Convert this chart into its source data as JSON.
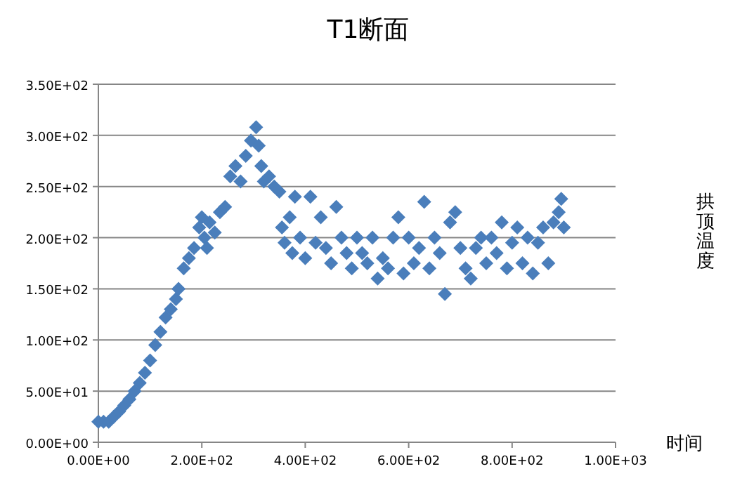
{
  "chart_data": {
    "type": "scatter",
    "title": "T1断面",
    "xlabel": "时间",
    "ylabel": "拱顶温度",
    "marker": "diamond",
    "grid": "y",
    "xlim": [
      0,
      1000
    ],
    "ylim": [
      0,
      350
    ],
    "xticks": [
      {
        "value": 0,
        "label": "0.00E+00"
      },
      {
        "value": 200,
        "label": "2.00E+02"
      },
      {
        "value": 400,
        "label": "4.00E+02"
      },
      {
        "value": 600,
        "label": "6.00E+02"
      },
      {
        "value": 800,
        "label": "8.00E+02"
      },
      {
        "value": 1000,
        "label": "1.00E+03"
      }
    ],
    "yticks": [
      {
        "value": 0,
        "label": "0.00E+00"
      },
      {
        "value": 50,
        "label": "5.00E+01"
      },
      {
        "value": 100,
        "label": "1.00E+02"
      },
      {
        "value": 150,
        "label": "1.50E+02"
      },
      {
        "value": 200,
        "label": "2.00E+02"
      },
      {
        "value": 250,
        "label": "2.50E+02"
      },
      {
        "value": 300,
        "label": "3.00E+02"
      },
      {
        "value": 350,
        "label": "3.50E+02"
      }
    ],
    "series": [
      {
        "color": "#4a7ebb",
        "x": [
          0,
          10,
          20,
          30,
          40,
          50,
          60,
          70,
          80,
          90,
          100,
          110,
          120,
          130,
          140,
          150,
          155,
          165,
          175,
          185,
          195,
          200,
          205,
          210,
          215,
          225,
          235,
          245,
          255,
          265,
          275,
          285,
          295,
          305,
          310,
          315,
          320,
          330,
          340,
          350,
          355,
          360,
          370,
          375,
          380,
          390,
          400,
          410,
          420,
          430,
          440,
          450,
          460,
          470,
          480,
          490,
          500,
          510,
          520,
          530,
          540,
          550,
          560,
          570,
          580,
          590,
          600,
          610,
          620,
          630,
          640,
          650,
          660,
          670,
          680,
          690,
          700,
          710,
          720,
          730,
          740,
          750,
          760,
          770,
          780,
          790,
          800,
          810,
          820,
          830,
          840,
          850,
          860,
          870,
          880,
          890,
          895,
          900
        ],
        "values": [
          20,
          20,
          20,
          25,
          30,
          36,
          42,
          50,
          58,
          68,
          80,
          95,
          108,
          122,
          130,
          140,
          150,
          170,
          180,
          190,
          210,
          220,
          200,
          190,
          215,
          205,
          225,
          230,
          260,
          270,
          255,
          280,
          295,
          308,
          290,
          270,
          255,
          260,
          250,
          245,
          210,
          195,
          220,
          185,
          240,
          200,
          180,
          240,
          195,
          220,
          190,
          175,
          230,
          200,
          185,
          170,
          200,
          185,
          175,
          200,
          160,
          180,
          170,
          200,
          220,
          165,
          200,
          175,
          190,
          235,
          170,
          200,
          185,
          145,
          215,
          225,
          190,
          170,
          160,
          190,
          200,
          175,
          200,
          185,
          215,
          170,
          195,
          210,
          175,
          200,
          165,
          195,
          210,
          175,
          215,
          225,
          238,
          210
        ]
      }
    ]
  }
}
